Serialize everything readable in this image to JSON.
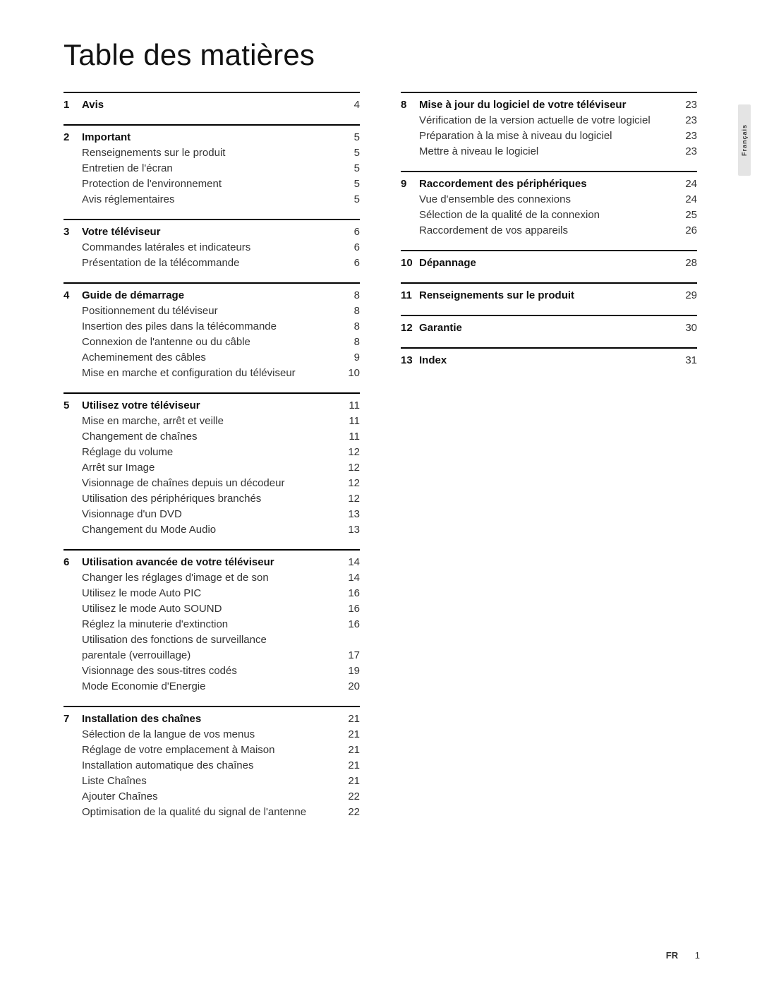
{
  "title": "Table des matières",
  "language_tab": "Français",
  "footer": {
    "lang": "FR",
    "page": "1"
  },
  "columns": [
    [
      {
        "num": "1",
        "title": "Avis",
        "page": "4",
        "items": []
      },
      {
        "num": "2",
        "title": "Important",
        "page": "5",
        "items": [
          {
            "label": "Renseignements sur le produit",
            "page": "5"
          },
          {
            "label": "Entretien de l'écran",
            "page": "5"
          },
          {
            "label": "Protection de l'environnement",
            "page": "5"
          },
          {
            "label": "Avis réglementaires",
            "page": "5"
          }
        ]
      },
      {
        "num": "3",
        "title": "Votre téléviseur",
        "page": "6",
        "items": [
          {
            "label": "Commandes latérales et indicateurs",
            "page": "6"
          },
          {
            "label": "Présentation de la télécommande",
            "page": "6"
          }
        ]
      },
      {
        "num": "4",
        "title": "Guide de démarrage",
        "page": "8",
        "items": [
          {
            "label": "Positionnement du téléviseur",
            "page": "8"
          },
          {
            "label": "Insertion des piles dans la télécommande",
            "page": "8"
          },
          {
            "label": "Connexion de l'antenne ou du câble",
            "page": "8"
          },
          {
            "label": "Acheminement des câbles",
            "page": "9"
          },
          {
            "label": "Mise en marche et configuration du téléviseur",
            "page": "10"
          }
        ]
      },
      {
        "num": "5",
        "title": "Utilisez votre téléviseur",
        "page": "11",
        "items": [
          {
            "label": "Mise en marche, arrêt et veille",
            "page": "11"
          },
          {
            "label": "Changement de chaînes",
            "page": "11"
          },
          {
            "label": "Réglage du volume",
            "page": "12"
          },
          {
            "label": "Arrêt sur Image",
            "page": "12"
          },
          {
            "label": "Visionnage de chaînes depuis un décodeur",
            "page": "12"
          },
          {
            "label": "Utilisation des périphériques branchés",
            "page": "12"
          },
          {
            "label": "Visionnage d'un DVD",
            "page": "13"
          },
          {
            "label": "Changement du Mode Audio",
            "page": "13"
          }
        ]
      },
      {
        "num": "6",
        "title": "Utilisation avancée de votre téléviseur",
        "page": "14",
        "items": [
          {
            "label": "Changer les réglages d'image et de son",
            "page": "14"
          },
          {
            "label": "Utilisez le mode Auto PIC",
            "page": "16"
          },
          {
            "label": "Utilisez le mode Auto SOUND",
            "page": "16"
          },
          {
            "label": "Réglez la minuterie d'extinction",
            "page": "16"
          },
          {
            "label": "Utilisation des fonctions de surveillance",
            "page": ""
          },
          {
            "label": "   parentale (verrouillage)",
            "page": "17"
          },
          {
            "label": "Visionnage des sous-titres codés",
            "page": "19"
          },
          {
            "label": "Mode Economie d'Energie",
            "page": "20"
          }
        ]
      },
      {
        "num": "7",
        "title": "Installation des chaînes",
        "page": "21",
        "items": [
          {
            "label": "Sélection de la langue de vos menus",
            "page": "21"
          },
          {
            "label": "Réglage de votre emplacement à Maison",
            "page": "21"
          },
          {
            "label": "Installation automatique des chaînes",
            "page": "21"
          },
          {
            "label": "Liste Chaînes",
            "page": "21"
          },
          {
            "label": "Ajouter Chaînes",
            "page": "22"
          },
          {
            "label": "Optimisation de la qualité du signal de l'antenne",
            "page": "22"
          }
        ]
      }
    ],
    [
      {
        "num": "8",
        "title": "Mise à jour du logiciel de votre téléviseur",
        "page": "23",
        "items": [
          {
            "label": "Vérification de la version actuelle de votre logiciel",
            "page": "23"
          },
          {
            "label": "Préparation à la mise à niveau du logiciel",
            "page": "23"
          },
          {
            "label": "Mettre à niveau le logiciel",
            "page": "23"
          }
        ]
      },
      {
        "num": "9",
        "title": "Raccordement des périphériques",
        "page": "24",
        "items": [
          {
            "label": "Vue d'ensemble des connexions",
            "page": "24"
          },
          {
            "label": "Sélection de la qualité de la connexion",
            "page": "25"
          },
          {
            "label": "Raccordement de vos appareils",
            "page": "26"
          }
        ]
      },
      {
        "num": "10",
        "title": "Dépannage",
        "page": "28",
        "items": []
      },
      {
        "num": "11",
        "title": "Renseignements sur le produit",
        "page": "29",
        "items": []
      },
      {
        "num": "12",
        "title": "Garantie",
        "page": "30",
        "items": []
      },
      {
        "num": "13",
        "title": "Index",
        "page": "31",
        "items": []
      }
    ]
  ]
}
